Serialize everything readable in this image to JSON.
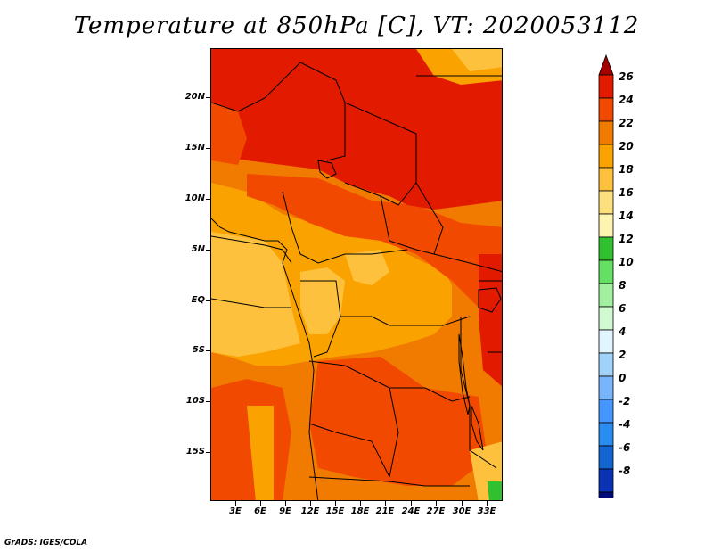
{
  "title": "Temperature at 850hPa [C], VT: 2020053112",
  "credit": "GrADS: IGES/COLA",
  "y_ticks": [
    "20N",
    "15N",
    "10N",
    "5N",
    "EQ",
    "5S",
    "10S",
    "15S"
  ],
  "x_ticks": [
    "3E",
    "6E",
    "9E",
    "12E",
    "15E",
    "18E",
    "21E",
    "24E",
    "27E",
    "30E",
    "33E"
  ],
  "colorbar": {
    "labels": [
      "26",
      "24",
      "22",
      "20",
      "18",
      "16",
      "14",
      "12",
      "10",
      "8",
      "6",
      "4",
      "2",
      "0",
      "-2",
      "-4",
      "-6",
      "-8"
    ],
    "colors": [
      "#a50000",
      "#e11a00",
      "#f14a00",
      "#f17a00",
      "#faa300",
      "#fdc13e",
      "#fde07e",
      "#fdf4b2",
      "#30c030",
      "#64e064",
      "#a0f0a0",
      "#d2fad2",
      "#e1f5ff",
      "#a0d2fa",
      "#78b4fa",
      "#4696ff",
      "#288cf0",
      "#1464d2",
      "#0a32b4",
      "#000a78",
      "#dcdcf5"
    ]
  }
}
